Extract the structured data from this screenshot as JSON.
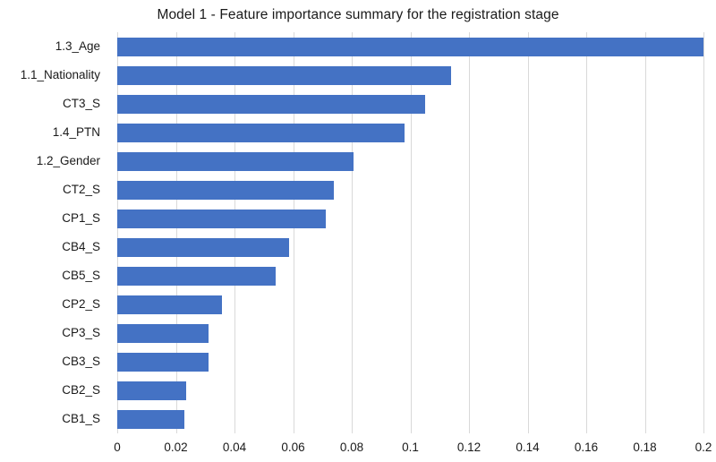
{
  "chart_data": {
    "type": "bar",
    "orientation": "horizontal",
    "title": "Model 1 - Feature importance summary for the registration stage",
    "categories": [
      "1.3_Age",
      "1.1_Nationality",
      "CT3_S",
      "1.4_PTN",
      "1.2_Gender",
      "CT2_S",
      "CP1_S",
      "CB4_S",
      "CB5_S",
      "CP2_S",
      "CP3_S",
      "CB3_S",
      "CB2_S",
      "CB1_S"
    ],
    "values": [
      0.2,
      0.114,
      0.105,
      0.098,
      0.0805,
      0.074,
      0.0712,
      0.0585,
      0.054,
      0.0358,
      0.0312,
      0.031,
      0.0235,
      0.0228
    ],
    "xlabel": "",
    "ylabel": "",
    "xlim": [
      0,
      0.2
    ],
    "xticks": [
      0,
      0.02,
      0.04,
      0.06,
      0.08,
      0.1,
      0.12,
      0.14,
      0.16,
      0.18,
      0.2
    ],
    "xtick_labels": [
      "0",
      "0.02",
      "0.04",
      "0.06",
      "0.08",
      "0.1",
      "0.12",
      "0.14",
      "0.16",
      "0.18",
      "0.2"
    ],
    "grid": "vertical-gridlines-on",
    "legend": "none",
    "bar_color": "#4472C4",
    "gridline_color": "#D9D9D9",
    "text_color": "#1a1a1a"
  }
}
